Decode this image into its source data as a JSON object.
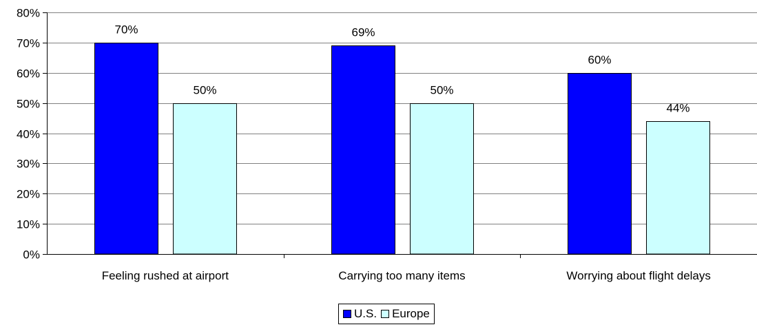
{
  "chart_data": {
    "type": "bar",
    "categories": [
      "Feeling rushed at airport",
      "Carrying too many items",
      "Worrying about flight delays"
    ],
    "series": [
      {
        "name": "U.S.",
        "values": [
          70,
          69,
          60
        ],
        "labels": [
          "70%",
          "69%",
          "60%"
        ],
        "color": "#0000FF"
      },
      {
        "name": "Europe",
        "values": [
          50,
          50,
          44
        ],
        "labels": [
          "50%",
          "50%",
          "44%"
        ],
        "color": "#CCFFFF"
      }
    ],
    "ylim": [
      0,
      80
    ],
    "yticks": [
      "0%",
      "10%",
      "20%",
      "30%",
      "40%",
      "50%",
      "60%",
      "70%",
      "80%"
    ],
    "grid": true,
    "legend_position": "bottom"
  }
}
